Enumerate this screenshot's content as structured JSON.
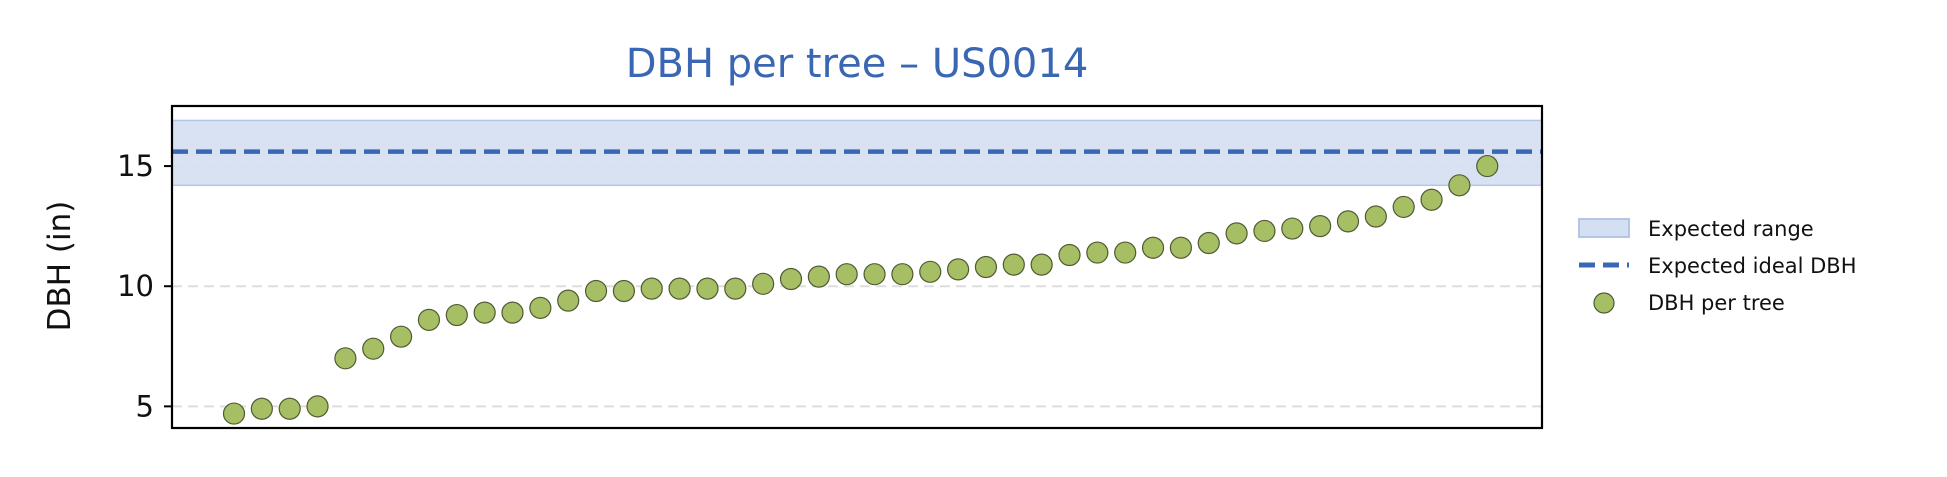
{
  "colors": {
    "title": "#3a67b3",
    "range_fill": "#d5dff2",
    "range_edge": "#b3c6ea",
    "ideal_line": "#3a67b3",
    "point_fill": "#a6bf64",
    "point_edge": "#4f5a34",
    "grid": "#dddddd",
    "axes": "#000000"
  },
  "chart_data": {
    "type": "scatter",
    "title": "DBH per tree – US0014",
    "xlabel": "",
    "ylabel": "DBH (in)",
    "ylim": [
      4.1,
      17.5
    ],
    "yticks": [
      5,
      10,
      15
    ],
    "grid": "y dashed",
    "legend_placement": "right, outside plot",
    "expected_range": [
      14.2,
      16.9
    ],
    "expected_ideal": 15.6,
    "legend": [
      "Expected range",
      "Expected ideal DBH",
      "DBH per tree"
    ],
    "series": [
      {
        "name": "DBH per tree",
        "values": [
          4.7,
          4.9,
          4.9,
          5.0,
          7.0,
          7.4,
          7.9,
          8.6,
          8.8,
          8.9,
          8.9,
          9.1,
          9.4,
          9.8,
          9.8,
          9.9,
          9.9,
          9.9,
          9.9,
          10.1,
          10.3,
          10.4,
          10.5,
          10.5,
          10.5,
          10.6,
          10.7,
          10.8,
          10.9,
          10.9,
          11.3,
          11.4,
          11.4,
          11.6,
          11.6,
          11.8,
          12.2,
          12.3,
          12.4,
          12.5,
          12.7,
          12.9,
          13.3,
          13.6,
          14.2,
          15.0
        ]
      }
    ]
  }
}
